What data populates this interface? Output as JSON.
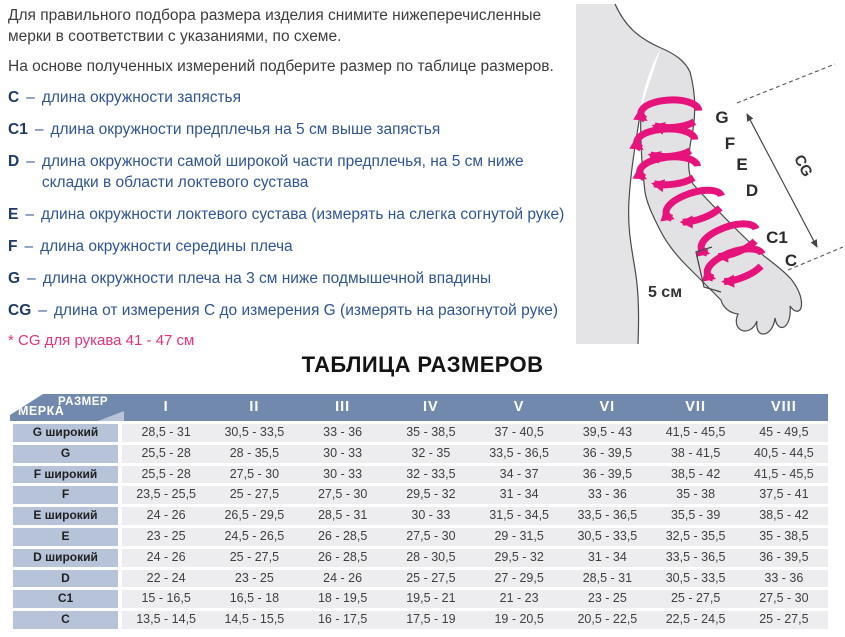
{
  "intro": {
    "p1": "Для правильного подбора размера изделия снимите нижеперечисленные мерки в соответствии с указаниями, по схеме.",
    "p2": "На основе полученных измерений подберите размер по таблице размеров."
  },
  "dash": "–",
  "measurements": [
    {
      "term": "C",
      "text": "длина окружности запястья"
    },
    {
      "term": "C1",
      "text": "длина окружности предплечья на 5 см выше запястья"
    },
    {
      "term": "D",
      "text": "длина окружности самой широкой части предплечья, на 5 см ниже складки в области локтевого сустава"
    },
    {
      "term": "E",
      "text": "длина окружности локтевого сустава (измерять на слегка согнутой руке)"
    },
    {
      "term": "F",
      "text": "длина окружности середины плеча"
    },
    {
      "term": "G",
      "text": "длина окружности плеча на 3 см ниже подмышечной впадины"
    },
    {
      "term": "CG",
      "text": "длина от измерения С до измерения G (измерять на разогнутой руке)"
    }
  ],
  "note": "* CG для рукава  41 - 47 см",
  "table_title": "ТАБЛИЦА РАЗМЕРОВ",
  "table": {
    "corner_top": "РАЗМЕР",
    "corner_bottom": "МЕРКА",
    "columns": [
      "I",
      "II",
      "III",
      "IV",
      "V",
      "VI",
      "VII",
      "VIII"
    ],
    "rows": [
      {
        "label": "G широкий",
        "values": [
          "28,5 - 31",
          "30,5 - 33,5",
          "33 - 36",
          "35 - 38,5",
          "37 - 40,5",
          "39,5 - 43",
          "41,5 - 45,5",
          "45 - 49,5"
        ]
      },
      {
        "label": "G",
        "values": [
          "25,5 - 28",
          "28 - 35,5",
          "30 - 33",
          "32 - 35",
          "33,5 - 36,5",
          "36 - 39,5",
          "38 - 41,5",
          "40,5 - 44,5"
        ]
      },
      {
        "label": "F широкий",
        "values": [
          "25,5 - 28",
          "27,5 - 30",
          "30 - 33",
          "32 - 33,5",
          "34 - 37",
          "36 - 39,5",
          "38,5 - 42",
          "41,5 - 45,5"
        ]
      },
      {
        "label": "F",
        "values": [
          "23,5 - 25,5",
          "25 - 27,5",
          "27,5 - 30",
          "29,5 - 32",
          "31 - 34",
          "33 - 36",
          "35 - 38",
          "37,5 - 41"
        ]
      },
      {
        "label": "E широкий",
        "values": [
          "24 - 26",
          "26,5 - 29,5",
          "28,5 - 31",
          "30 - 33",
          "31,5 - 34,5",
          "33,5 - 36,5",
          "35,5 - 39",
          "38,5 - 42"
        ]
      },
      {
        "label": "E",
        "values": [
          "23 - 25",
          "24,5 - 26,5",
          "26 - 28,5",
          "27,5 - 30",
          "29 - 31,5",
          "30,5 - 33,5",
          "32,5 - 35,5",
          "35 - 38,5"
        ]
      },
      {
        "label": "D широкий",
        "values": [
          "24 - 26",
          "25 - 27,5",
          "26 - 28,5",
          "28 - 30,5",
          "29,5 - 32",
          "31 - 34",
          "33,5 - 36,5",
          "36 - 39,5"
        ]
      },
      {
        "label": "D",
        "values": [
          "22 - 24",
          "23 - 25",
          "24 - 26",
          "25 - 27,5",
          "27 - 29,5",
          "28,5 - 31",
          "30,5 - 33,5",
          "33 - 36"
        ]
      },
      {
        "label": "C1",
        "values": [
          "15 - 16,5",
          "16,5 - 18",
          "18 - 19,5",
          "19,5 - 21",
          "21 - 23",
          "23 - 25",
          "25 - 27,5",
          "27,5 - 30"
        ]
      },
      {
        "label": "C",
        "values": [
          "13,5 - 14,5",
          "14,5 - 15,5",
          "16 - 17,5",
          "17,5 - 19",
          "19 - 20,5",
          "20,5 - 22,5",
          "22,5 - 24,5",
          "25 - 27,5"
        ]
      }
    ]
  },
  "diagram": {
    "point_labels": {
      "g": "G",
      "f": "F",
      "e": "E",
      "d": "D",
      "c1": "C1",
      "c": "C"
    },
    "cg_label": "CG",
    "width_note": "5 см"
  },
  "colors": {
    "accent_pink": "#e7137c",
    "term_navy": "#1e3a68",
    "def_blue": "#2f5498",
    "table_header_blue": "#7289ae",
    "label_cell_blue": "#b7c3d9",
    "data_cell_gray": "#ededef"
  }
}
